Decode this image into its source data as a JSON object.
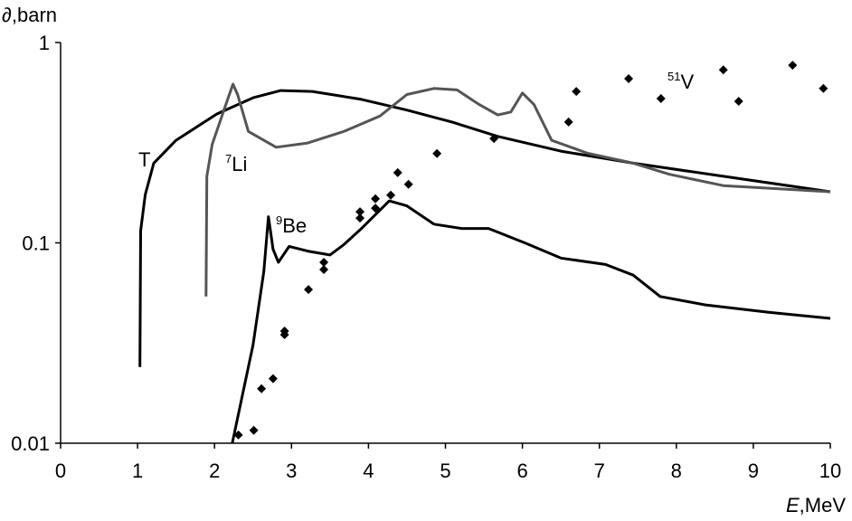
{
  "chart_data": {
    "type": "line",
    "ylabel": "∂,barn",
    "xlabel": {
      "var": "E",
      "unit": ",MeV"
    },
    "xlim": [
      0,
      10
    ],
    "xticks": [
      0,
      1,
      2,
      3,
      4,
      5,
      6,
      7,
      8,
      9,
      10
    ],
    "ylim": [
      0.01,
      1
    ],
    "yticks": [
      0.01,
      0.1,
      1
    ],
    "ylog": true,
    "annotations": [
      {
        "sup": "",
        "text": "T"
      },
      {
        "sup": "7",
        "text": "Li"
      },
      {
        "sup": "9",
        "text": "Be"
      },
      {
        "sup": "51",
        "text": "V"
      }
    ],
    "series": [
      {
        "type": "line",
        "color": "#000000",
        "x": [
          1.03,
          1.04,
          1.1,
          1.21,
          1.5,
          2.03,
          2.5,
          2.86,
          3.27,
          3.91,
          4.5,
          5.09,
          5.68,
          6.5,
          7.44,
          8.61,
          10
        ],
        "values": [
          0.024,
          0.115,
          0.174,
          0.25,
          0.325,
          0.44,
          0.53,
          0.576,
          0.57,
          0.52,
          0.46,
          0.4,
          0.34,
          0.287,
          0.25,
          0.215,
          0.18
        ]
      },
      {
        "type": "line",
        "color": "#555555",
        "x": [
          1.89,
          1.9,
          1.97,
          2.13,
          2.24,
          2.3,
          2.44,
          2.8,
          3.21,
          3.68,
          4.15,
          4.5,
          4.85,
          5.15,
          5.44,
          5.68,
          5.85,
          6.0,
          6.15,
          6.38,
          6.85,
          7.44,
          7.91,
          8.61,
          10
        ],
        "values": [
          0.054,
          0.215,
          0.31,
          0.47,
          0.62,
          0.55,
          0.36,
          0.3,
          0.315,
          0.36,
          0.43,
          0.55,
          0.59,
          0.58,
          0.49,
          0.435,
          0.45,
          0.56,
          0.49,
          0.325,
          0.28,
          0.25,
          0.22,
          0.193,
          0.18
        ]
      },
      {
        "type": "line",
        "color": "#000000",
        "x": [
          2.23,
          2.5,
          2.64,
          2.7,
          2.76,
          2.83,
          2.97,
          3.21,
          3.5,
          3.68,
          3.91,
          4.27,
          4.5,
          4.85,
          5.21,
          5.56,
          6.03,
          6.5,
          7.08,
          7.44,
          7.79,
          8.38,
          9.2,
          10
        ],
        "values": [
          0.01,
          0.031,
          0.072,
          0.135,
          0.093,
          0.08,
          0.096,
          0.091,
          0.087,
          0.098,
          0.118,
          0.162,
          0.153,
          0.124,
          0.118,
          0.118,
          0.1,
          0.084,
          0.078,
          0.069,
          0.054,
          0.049,
          0.045,
          0.042
        ]
      },
      {
        "type": "scatter",
        "color": "#000000",
        "x": [
          2.31,
          2.51,
          2.61,
          2.76,
          2.91,
          2.91,
          3.22,
          3.42,
          3.42,
          3.89,
          3.89,
          4.09,
          4.09,
          4.29,
          4.38,
          4.52,
          4.89,
          5.63,
          6.6,
          6.7,
          7.38,
          7.8,
          8.61,
          8.81,
          9.51,
          9.91
        ],
        "values": [
          0.011,
          0.0116,
          0.0187,
          0.021,
          0.0348,
          0.0363,
          0.0585,
          0.08,
          0.0736,
          0.143,
          0.133,
          0.166,
          0.149,
          0.173,
          0.224,
          0.196,
          0.279,
          0.332,
          0.401,
          0.57,
          0.66,
          0.525,
          0.73,
          0.509,
          0.77,
          0.59
        ]
      }
    ]
  }
}
